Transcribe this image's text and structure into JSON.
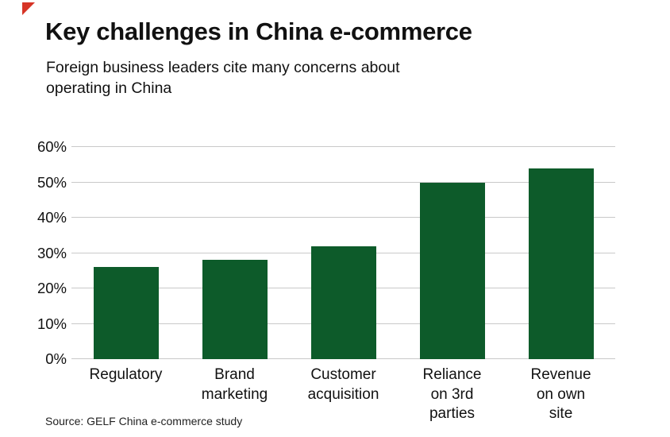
{
  "header": {
    "title": "Key challenges in China e-commerce",
    "subtitle": "Foreign business leaders cite many concerns about\noperating in China"
  },
  "footer": {
    "source": "Source: GELF China e-commerce study"
  },
  "colors": {
    "bar": "#0d5b2a",
    "corner_accent": "#d63426",
    "gridline": "#c9c9c9",
    "text": "#111111"
  },
  "chart_data": {
    "type": "bar",
    "title": "Key challenges in China e-commerce",
    "subtitle": "Foreign business leaders cite many concerns about operating in China",
    "source": "Source: GELF China e-commerce study",
    "categories": [
      "Regulatory",
      "Brand marketing",
      "Customer acquisition",
      "Reliance on 3rd parties",
      "Revenue on own site"
    ],
    "categories_display": [
      "Regulatory",
      "Brand\nmarketing",
      "Customer\nacquisition",
      "Reliance\non 3rd\nparties",
      "Revenue\non own\nsite"
    ],
    "values": [
      26,
      28,
      32,
      50,
      54
    ],
    "unit": "%",
    "xlabel": "",
    "ylabel": "",
    "ylim": [
      0,
      60
    ],
    "yticks": [
      "0%",
      "10%",
      "20%",
      "30%",
      "40%",
      "50%",
      "60%"
    ],
    "grid": true,
    "legend": false,
    "bar_color": "#0d5b2a"
  }
}
